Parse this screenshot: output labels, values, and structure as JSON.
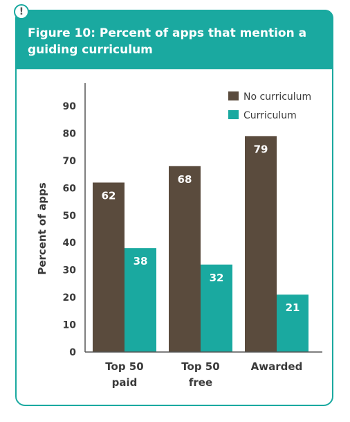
{
  "alert_icon": "exclamation-icon",
  "chart_data": {
    "type": "bar",
    "title": "Figure 10: Percent of apps that mention a guiding curriculum",
    "ylabel": "Percent of apps",
    "xlabel": "",
    "ylim": [
      0,
      90
    ],
    "yticks": [
      0,
      10,
      20,
      30,
      40,
      50,
      60,
      70,
      80,
      90
    ],
    "categories": [
      [
        "Top 50",
        "paid"
      ],
      [
        "Top 50",
        "free"
      ],
      [
        "Awarded"
      ]
    ],
    "series": [
      {
        "name": "No curriculum",
        "color": "#5a4b3d",
        "values": [
          62,
          68,
          79
        ]
      },
      {
        "name": "Curriculum",
        "color": "#1aa9a0",
        "values": [
          38,
          32,
          21
        ]
      }
    ],
    "legend": "top-right",
    "grid": false
  }
}
